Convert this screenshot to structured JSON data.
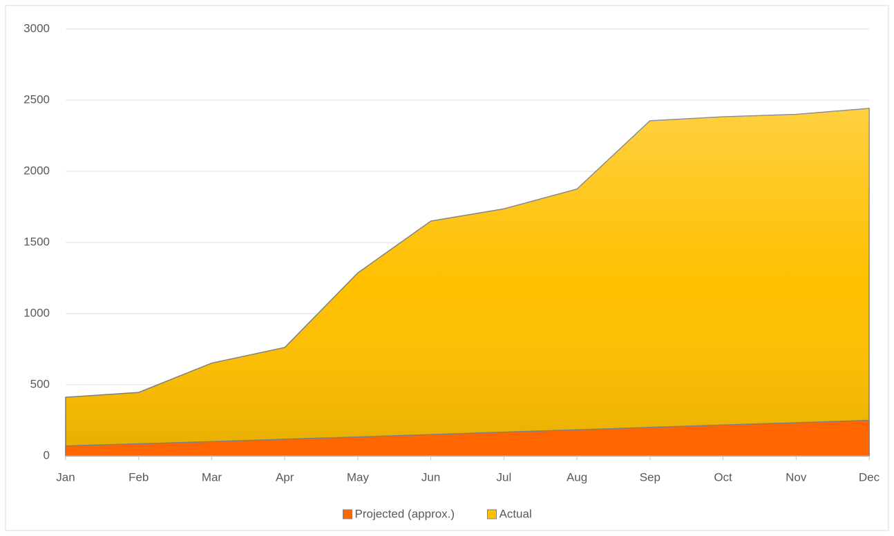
{
  "chart_data": {
    "type": "area",
    "categories": [
      "Jan",
      "Feb",
      "Mar",
      "Apr",
      "May",
      "Jun",
      "Jul",
      "Aug",
      "Sep",
      "Oct",
      "Nov",
      "Dec"
    ],
    "series": [
      {
        "name": "Projected (approx.)",
        "color": "#ff6600",
        "values": [
          70,
          85,
          100,
          117,
          133,
          150,
          167,
          183,
          200,
          217,
          233,
          250
        ]
      },
      {
        "name": "Actual",
        "color": "#ffc000",
        "values": [
          412,
          446,
          652,
          762,
          1286,
          1650,
          1736,
          1875,
          2355,
          2383,
          2400,
          2442
        ]
      }
    ],
    "ylim": [
      0,
      3000
    ],
    "yticks": [
      0,
      500,
      1000,
      1500,
      2000,
      2500,
      3000
    ],
    "grid": true,
    "legend": "bottom"
  }
}
